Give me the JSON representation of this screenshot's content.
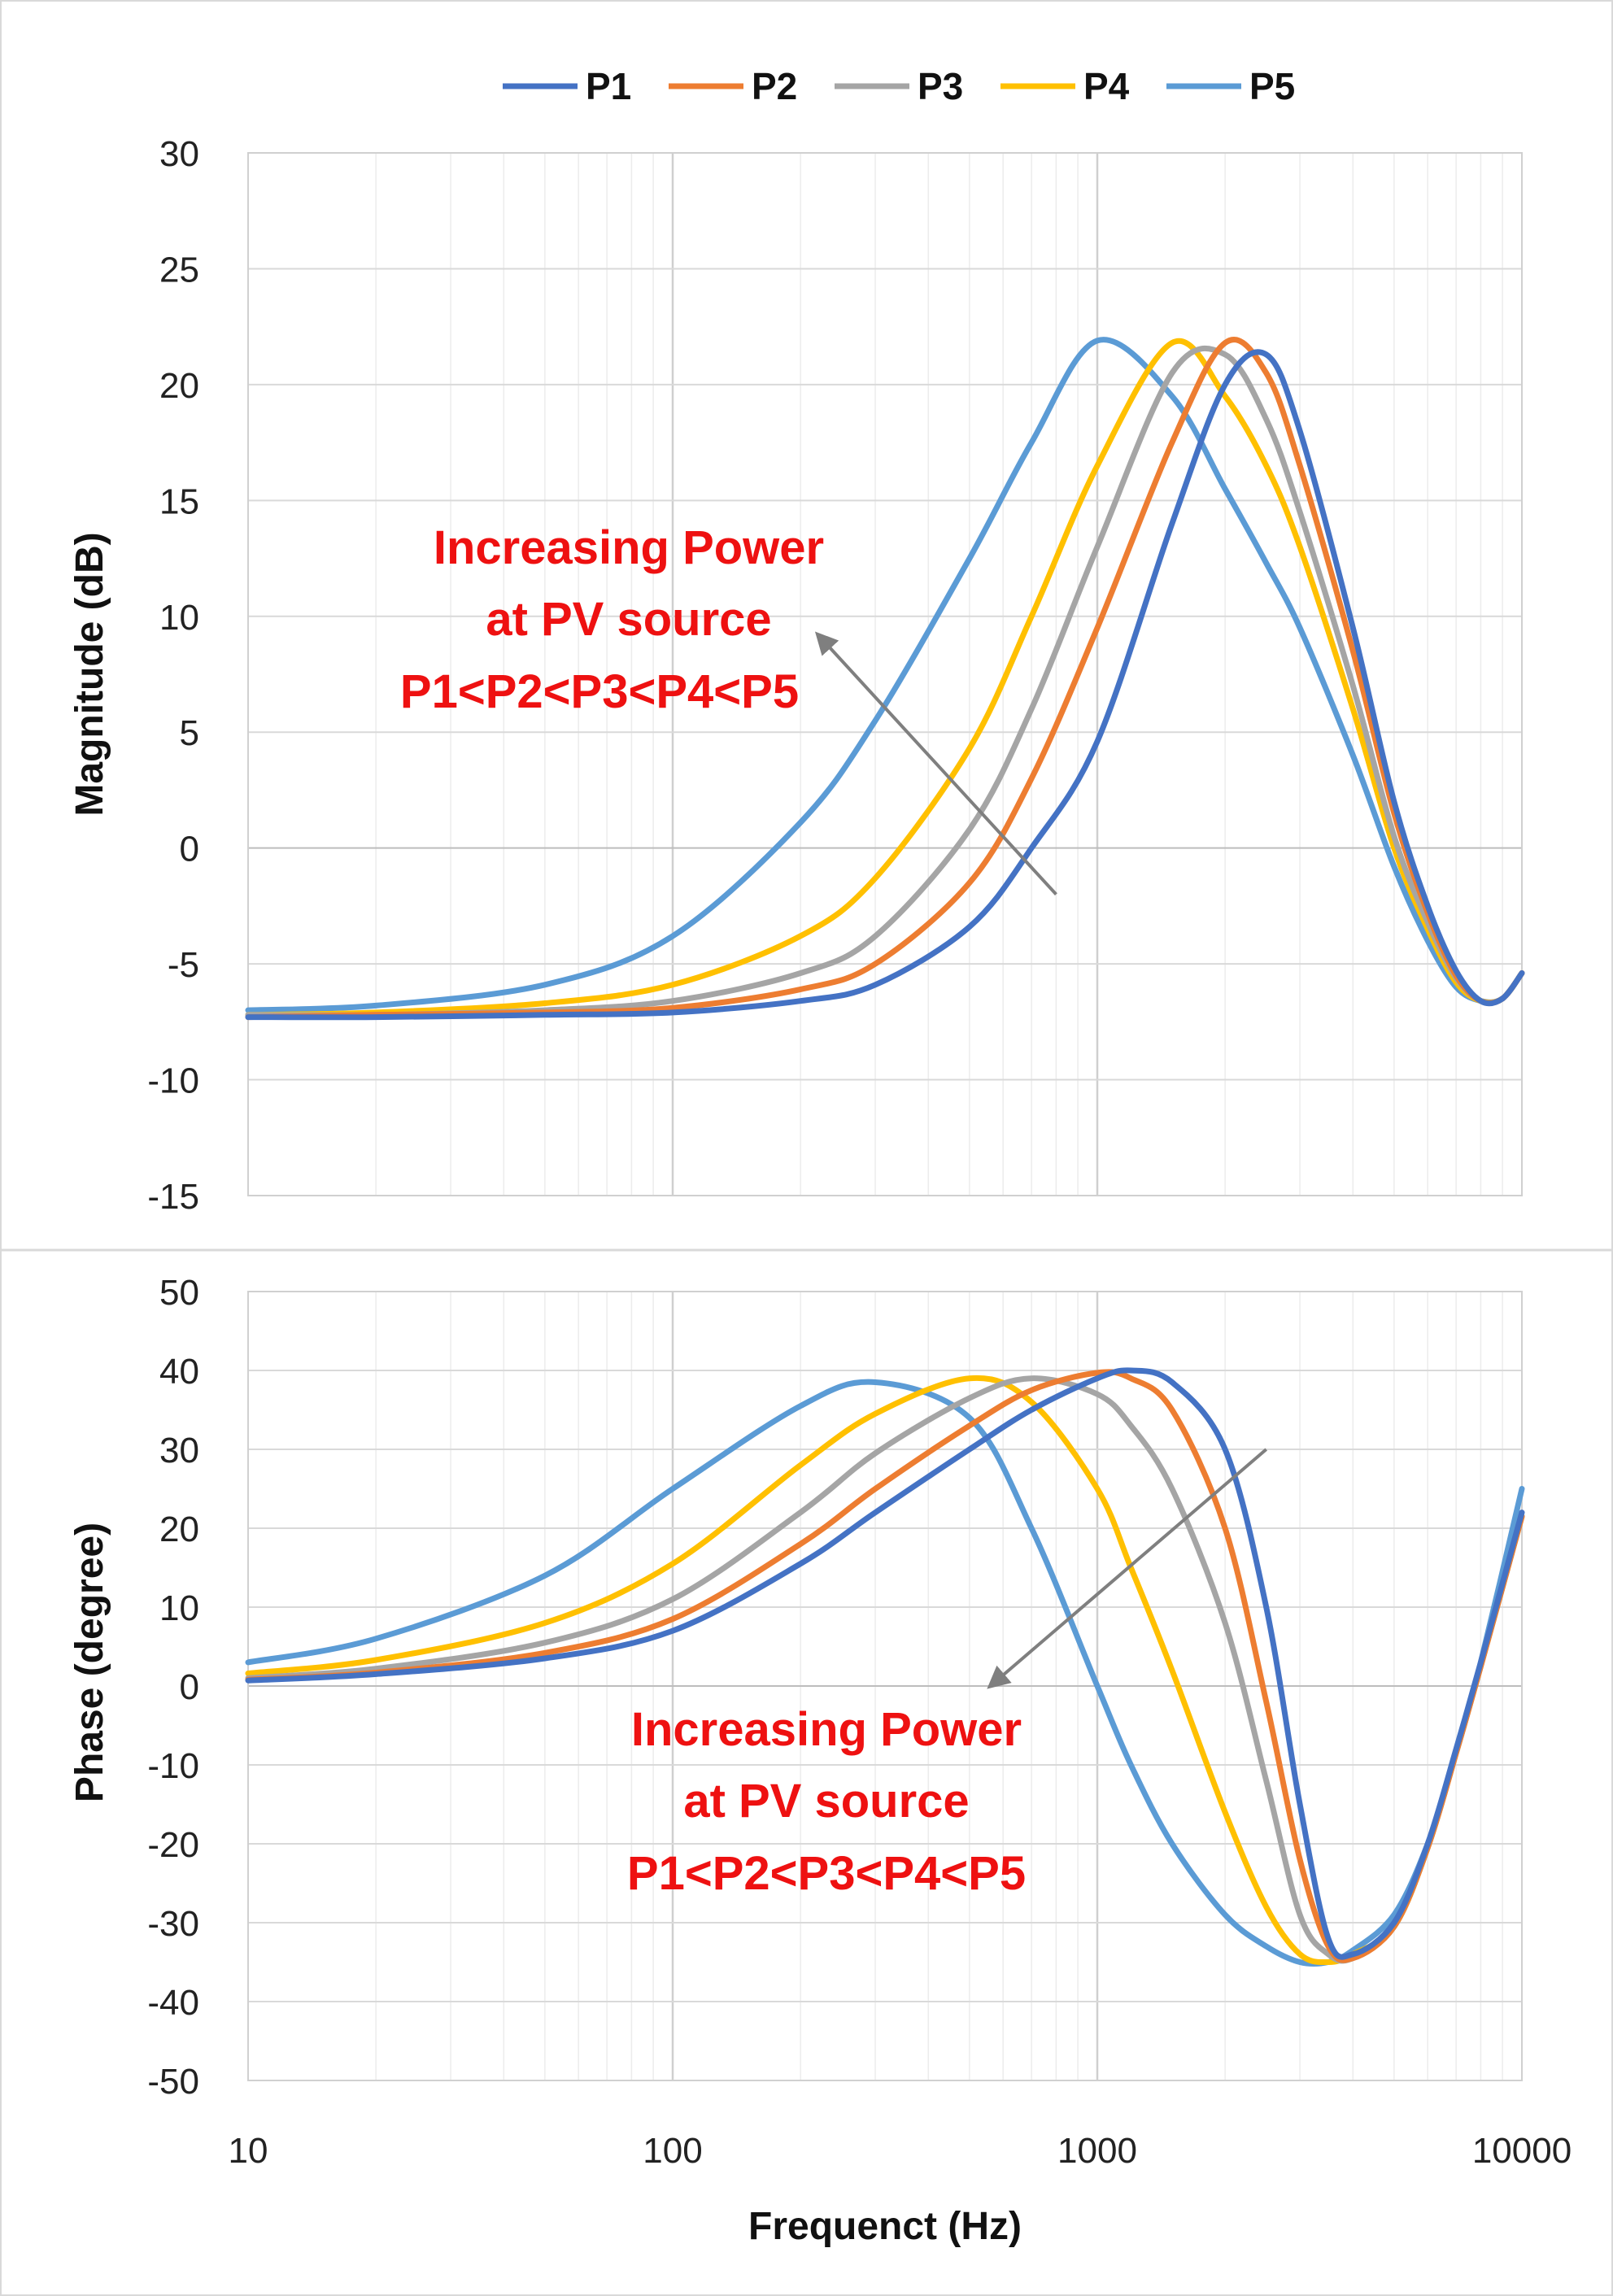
{
  "chart_data": [
    {
      "type": "line",
      "ylabel": "Magnitude (dB)",
      "xlabel": "",
      "x_scale": "log",
      "xlim": [
        10,
        10000
      ],
      "ylim": [
        -15,
        30
      ],
      "yticks": [
        "30",
        "25",
        "20",
        "15",
        "10",
        "5",
        "0",
        "-5",
        "-10",
        "-15"
      ],
      "legend": {
        "position": "top",
        "entries": [
          "P1",
          "P2",
          "P3",
          "P4",
          "P5"
        ]
      },
      "grid": true,
      "x": [
        10,
        20,
        50,
        100,
        200,
        300,
        500,
        700,
        1000,
        1500,
        2000,
        2500,
        3000,
        4000,
        5000,
        6000,
        7000,
        8000,
        9000,
        10000
      ],
      "series": [
        {
          "name": "P1",
          "color": "#4472C4",
          "values": [
            -7.3,
            -7.3,
            -7.2,
            -7.1,
            -6.6,
            -5.9,
            -3.4,
            0.0,
            4.6,
            14.0,
            20.0,
            21.3,
            18.0,
            9.5,
            2.0,
            -2.5,
            -5.3,
            -6.6,
            -6.5,
            -5.4
          ]
        },
        {
          "name": "P2",
          "color": "#ED7D31",
          "values": [
            -7.3,
            -7.2,
            -7.1,
            -6.9,
            -6.1,
            -5.0,
            -1.5,
            3.0,
            9.5,
            17.5,
            21.8,
            20.5,
            16.5,
            8.5,
            1.5,
            -2.8,
            -5.5,
            -6.6,
            -6.5,
            -5.4
          ]
        },
        {
          "name": "P3",
          "color": "#A5A5A5",
          "values": [
            -7.2,
            -7.2,
            -7.0,
            -6.6,
            -5.4,
            -3.8,
            0.8,
            6.0,
            13.0,
            20.5,
            21.3,
            18.5,
            14.5,
            7.0,
            0.5,
            -3.2,
            -5.6,
            -6.6,
            -6.5,
            -5.4
          ]
        },
        {
          "name": "P4",
          "color": "#FFC000",
          "values": [
            -7.2,
            -7.1,
            -6.7,
            -5.9,
            -3.8,
            -1.3,
            4.3,
            10.0,
            16.5,
            21.8,
            19.5,
            16.5,
            13.0,
            6.0,
            0.0,
            -3.5,
            -5.8,
            -6.6,
            -6.5,
            -5.4
          ]
        },
        {
          "name": "P5",
          "color": "#5B9BD5",
          "values": [
            -7.0,
            -6.8,
            -5.9,
            -3.8,
            1.1,
            5.5,
            12.5,
            17.5,
            21.9,
            19.5,
            15.5,
            12.3,
            9.5,
            4.0,
            -0.8,
            -4.0,
            -6.0,
            -6.6,
            -6.5,
            -5.4
          ]
        }
      ],
      "annotation": {
        "lines": [
          "Increasing Power",
          "at PV source",
          "P1<P2<P3<P4<P5"
        ],
        "arrow_from": [
          800,
          -2
        ],
        "arrow_to": [
          220,
          9.2
        ]
      }
    },
    {
      "type": "line",
      "ylabel": "Phase (degree)",
      "xlabel": "Frequenct (Hz)",
      "x_scale": "log",
      "xlim": [
        10,
        10000
      ],
      "ylim": [
        -50,
        50
      ],
      "xticks": [
        "10",
        "100",
        "1000",
        "10000"
      ],
      "yticks": [
        "50",
        "40",
        "30",
        "20",
        "10",
        "0",
        "-10",
        "-20",
        "-30",
        "-40",
        "-50"
      ],
      "grid": true,
      "x": [
        10,
        20,
        50,
        100,
        200,
        300,
        500,
        700,
        1000,
        1200,
        1500,
        2000,
        2500,
        3000,
        3500,
        4000,
        5000,
        6000,
        7000,
        8000,
        10000
      ],
      "series": [
        {
          "name": "P1",
          "color": "#4472C4",
          "values": [
            0.7,
            1.5,
            3.5,
            7.0,
            15.5,
            22.0,
            30.0,
            35.0,
            39.0,
            40.0,
            38.5,
            30.0,
            10.0,
            -15.0,
            -32.0,
            -34.0,
            -30.0,
            -20.0,
            -8.0,
            3.0,
            22.0
          ]
        },
        {
          "name": "P2",
          "color": "#ED7D31",
          "values": [
            0.8,
            1.7,
            4.2,
            8.5,
            18.0,
            25.0,
            33.0,
            37.5,
            39.7,
            39.0,
            35.0,
            20.0,
            -2.0,
            -22.0,
            -33.0,
            -34.5,
            -30.5,
            -20.5,
            -8.5,
            2.5,
            21.5
          ]
        },
        {
          "name": "P3",
          "color": "#A5A5A5",
          "values": [
            1.0,
            2.2,
            5.5,
            11.0,
            22.0,
            29.5,
            36.5,
            39.0,
            37.0,
            33.0,
            25.0,
            8.0,
            -12.0,
            -29.0,
            -34.0,
            -34.5,
            -30.5,
            -20.5,
            -8.5,
            2.5,
            21.5
          ]
        },
        {
          "name": "P4",
          "color": "#FFC000",
          "values": [
            1.6,
            3.3,
            8.0,
            15.5,
            28.0,
            34.5,
            39.0,
            36.0,
            25.0,
            15.0,
            2.0,
            -16.0,
            -28.0,
            -34.0,
            -35.0,
            -34.0,
            -30.5,
            -20.5,
            -8.5,
            2.5,
            21.5
          ]
        },
        {
          "name": "P5",
          "color": "#5B9BD5",
          "values": [
            3.0,
            6.0,
            14.0,
            25.0,
            35.5,
            38.5,
            34.0,
            20.0,
            0.0,
            -10.0,
            -20.0,
            -29.0,
            -33.0,
            -35.0,
            -35.0,
            -33.5,
            -29.0,
            -20.0,
            -8.5,
            3.0,
            25.0
          ]
        }
      ],
      "annotation": {
        "lines": [
          "Increasing Power",
          "at PV source",
          "P1<P2<P3<P4<P5"
        ],
        "arrow_from": [
          2500,
          30
        ],
        "arrow_to": [
          560,
          0
        ]
      }
    }
  ]
}
